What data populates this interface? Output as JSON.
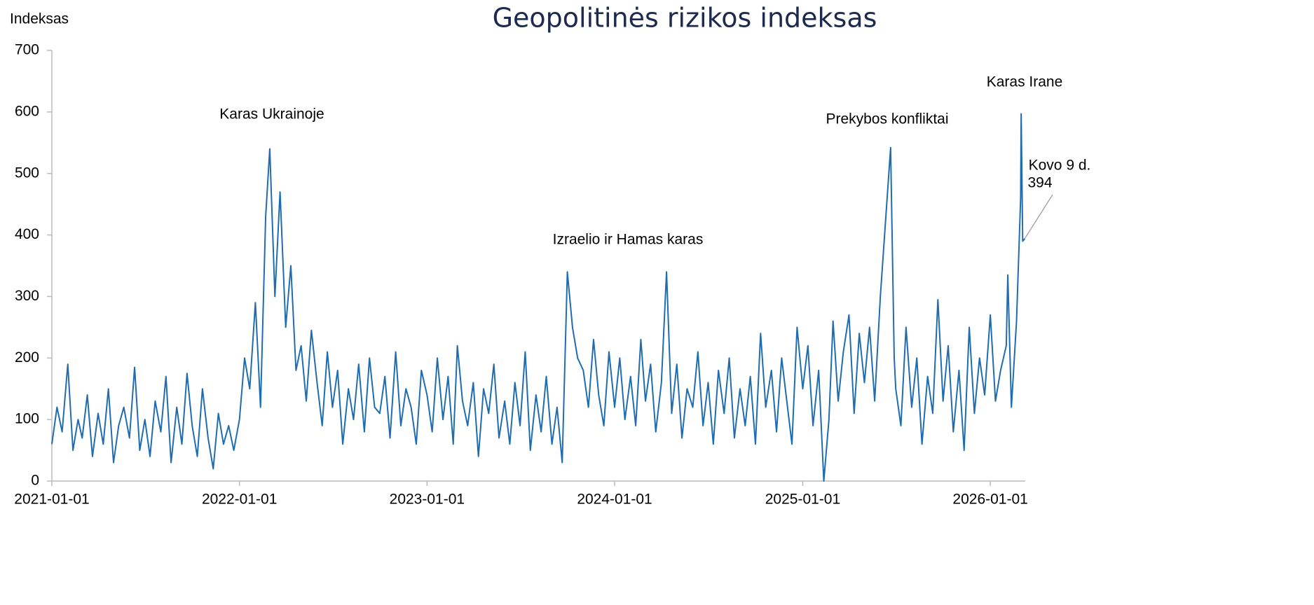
{
  "chart_data": {
    "type": "line",
    "title": "Geopolitinės rizikos indeksas",
    "y_label": "Indeksas",
    "xlim": [
      "2021-01-01",
      "2026-03-10"
    ],
    "xticks": [
      "2021-01-01",
      "2022-01-01",
      "2023-01-01",
      "2024-01-01",
      "2025-01-01",
      "2026-01-01"
    ],
    "ylim": [
      0,
      700
    ],
    "yticks": [
      0,
      100,
      200,
      300,
      400,
      500,
      600,
      700
    ],
    "annotations": [
      {
        "text": "Karas Ukrainoje"
      },
      {
        "text": "Izraelio ir Hamas karas"
      },
      {
        "text": "Prekybos konfliktai"
      },
      {
        "text": "Karas Irane"
      },
      {
        "text": "Kovo 9 d.",
        "x": "2026-03-09",
        "value": 394
      }
    ],
    "series": [
      {
        "name": "Geopolitinės rizikos indeksas",
        "color": "#1f6db0",
        "x": [
          "2021-01-01",
          "2021-01-11",
          "2021-01-21",
          "2021-02-01",
          "2021-02-11",
          "2021-02-21",
          "2021-03-01",
          "2021-03-11",
          "2021-03-21",
          "2021-04-01",
          "2021-04-11",
          "2021-04-21",
          "2021-05-01",
          "2021-05-11",
          "2021-05-21",
          "2021-06-01",
          "2021-06-11",
          "2021-06-21",
          "2021-07-01",
          "2021-07-11",
          "2021-07-21",
          "2021-08-01",
          "2021-08-11",
          "2021-08-21",
          "2021-09-01",
          "2021-09-11",
          "2021-09-21",
          "2021-10-01",
          "2021-10-11",
          "2021-10-21",
          "2021-11-01",
          "2021-11-11",
          "2021-11-21",
          "2021-12-01",
          "2021-12-11",
          "2021-12-21",
          "2022-01-01",
          "2022-01-11",
          "2022-01-21",
          "2022-02-01",
          "2022-02-11",
          "2022-02-21",
          "2022-03-01",
          "2022-03-11",
          "2022-03-21",
          "2022-04-01",
          "2022-04-11",
          "2022-04-21",
          "2022-05-01",
          "2022-05-11",
          "2022-05-21",
          "2022-06-01",
          "2022-06-11",
          "2022-06-21",
          "2022-07-01",
          "2022-07-11",
          "2022-07-21",
          "2022-08-01",
          "2022-08-11",
          "2022-08-21",
          "2022-09-01",
          "2022-09-11",
          "2022-09-21",
          "2022-10-01",
          "2022-10-11",
          "2022-10-21",
          "2022-11-01",
          "2022-11-11",
          "2022-11-21",
          "2022-12-01",
          "2022-12-11",
          "2022-12-21",
          "2023-01-01",
          "2023-01-11",
          "2023-01-21",
          "2023-02-01",
          "2023-02-11",
          "2023-02-21",
          "2023-03-01",
          "2023-03-11",
          "2023-03-21",
          "2023-04-01",
          "2023-04-11",
          "2023-04-21",
          "2023-05-01",
          "2023-05-11",
          "2023-05-21",
          "2023-06-01",
          "2023-06-11",
          "2023-06-21",
          "2023-07-01",
          "2023-07-11",
          "2023-07-21",
          "2023-08-01",
          "2023-08-11",
          "2023-08-21",
          "2023-09-01",
          "2023-09-11",
          "2023-09-21",
          "2023-10-01",
          "2023-10-11",
          "2023-10-21",
          "2023-11-01",
          "2023-11-11",
          "2023-11-21",
          "2023-12-01",
          "2023-12-11",
          "2023-12-21",
          "2024-01-01",
          "2024-01-11",
          "2024-01-21",
          "2024-02-01",
          "2024-02-11",
          "2024-02-21",
          "2024-03-01",
          "2024-03-11",
          "2024-03-21",
          "2024-04-01",
          "2024-04-11",
          "2024-04-21",
          "2024-05-01",
          "2024-05-11",
          "2024-05-21",
          "2024-06-01",
          "2024-06-11",
          "2024-06-21",
          "2024-07-01",
          "2024-07-11",
          "2024-07-21",
          "2024-08-01",
          "2024-08-11",
          "2024-08-21",
          "2024-09-01",
          "2024-09-11",
          "2024-09-21",
          "2024-10-01",
          "2024-10-11",
          "2024-10-21",
          "2024-11-01",
          "2024-11-11",
          "2024-11-21",
          "2024-12-01",
          "2024-12-11",
          "2024-12-21",
          "2025-01-01",
          "2025-01-11",
          "2025-01-21",
          "2025-02-01",
          "2025-02-11",
          "2025-02-21",
          "2025-03-01",
          "2025-03-11",
          "2025-03-21",
          "2025-04-01",
          "2025-04-11",
          "2025-04-21",
          "2025-05-01",
          "2025-05-11",
          "2025-05-21",
          "2025-06-01",
          "2025-06-21",
          "2025-06-28",
          "2025-07-01",
          "2025-07-11",
          "2025-07-21",
          "2025-08-01",
          "2025-08-11",
          "2025-08-21",
          "2025-09-01",
          "2025-09-11",
          "2025-09-21",
          "2025-10-01",
          "2025-10-11",
          "2025-10-21",
          "2025-11-01",
          "2025-11-11",
          "2025-11-21",
          "2025-12-01",
          "2025-12-11",
          "2025-12-21",
          "2026-01-01",
          "2026-01-11",
          "2026-01-21",
          "2026-02-01",
          "2026-02-04",
          "2026-02-11",
          "2026-02-21",
          "2026-03-01",
          "2026-03-02",
          "2026-03-05",
          "2026-03-09"
        ],
        "values": [
          60,
          120,
          80,
          190,
          50,
          100,
          70,
          140,
          40,
          110,
          60,
          150,
          30,
          90,
          120,
          70,
          185,
          50,
          100,
          40,
          130,
          80,
          170,
          30,
          120,
          60,
          175,
          90,
          40,
          150,
          70,
          20,
          110,
          60,
          90,
          50,
          100,
          200,
          150,
          290,
          120,
          430,
          540,
          300,
          470,
          250,
          350,
          180,
          220,
          130,
          245,
          160,
          90,
          210,
          120,
          180,
          60,
          150,
          100,
          190,
          80,
          200,
          120,
          110,
          170,
          70,
          210,
          90,
          150,
          120,
          60,
          180,
          140,
          80,
          200,
          100,
          170,
          60,
          220,
          130,
          90,
          160,
          40,
          150,
          110,
          190,
          70,
          130,
          60,
          160,
          90,
          210,
          50,
          140,
          80,
          170,
          60,
          120,
          30,
          340,
          250,
          200,
          180,
          120,
          230,
          140,
          90,
          210,
          120,
          200,
          100,
          170,
          90,
          230,
          130,
          190,
          80,
          160,
          340,
          110,
          190,
          70,
          150,
          120,
          210,
          90,
          160,
          60,
          180,
          110,
          200,
          70,
          150,
          90,
          170,
          60,
          240,
          120,
          180,
          80,
          200,
          130,
          60,
          250,
          150,
          220,
          90,
          180,
          0,
          100,
          260,
          130,
          210,
          270,
          110,
          240,
          160,
          250,
          130,
          300,
          542,
          200,
          150,
          90,
          250,
          120,
          200,
          60,
          170,
          110,
          295,
          130,
          220,
          80,
          180,
          50,
          250,
          110,
          200,
          140,
          270,
          130,
          180,
          220,
          335,
          120,
          260,
          460,
          597,
          390,
          394
        ]
      }
    ]
  }
}
